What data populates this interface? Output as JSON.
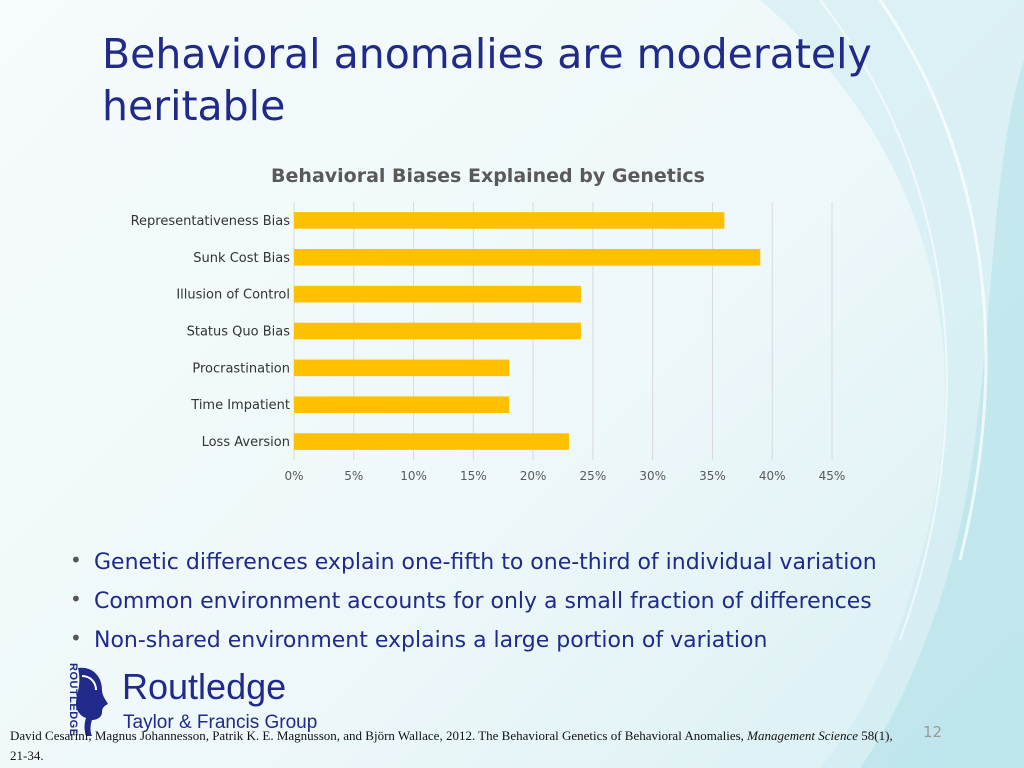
{
  "slide": {
    "title": "Behavioral anomalies are moderately heritable",
    "bullets": [
      "Genetic differences explain one-fifth to one-third of individual variation",
      "Common environment accounts for only a small fraction of differences",
      "Non-shared environment explains a large portion of variation"
    ],
    "logo": {
      "vertical_text": "ROUTLEDGE",
      "name": "Routledge",
      "subtitle": "Taylor & Francis Group"
    },
    "citation": {
      "text": "David Cesarini, Magnus Johannesson, Patrik K. E. Magnusson, and Björn Wallace, 2012. The Behavioral Genetics of Behavioral Anomalies, ",
      "journal": "Management Science",
      "details": " 58(1), 21-34."
    },
    "page_number": "12"
  },
  "colors": {
    "title": "#1f2a8a",
    "bar": "#ffc000",
    "chart_title": "#595959",
    "tick_label": "#595959",
    "gridline": "#d9d9d9"
  },
  "chart_data": {
    "type": "bar",
    "orientation": "horizontal",
    "title": "Behavioral Biases Explained by Genetics",
    "categories": [
      "Representativeness Bias",
      "Sunk Cost Bias",
      "Illusion of Control",
      "Status Quo Bias",
      "Procrastination",
      "Time Impatient",
      "Loss Aversion"
    ],
    "values": [
      0.36,
      0.39,
      0.24,
      0.24,
      0.18,
      0.18,
      0.23
    ],
    "xlim": [
      0,
      0.45
    ],
    "xticks": [
      0,
      0.05,
      0.1,
      0.15,
      0.2,
      0.25,
      0.3,
      0.35,
      0.4,
      0.45
    ],
    "xtick_labels": [
      "0%",
      "5%",
      "10%",
      "15%",
      "20%",
      "25%",
      "30%",
      "35%",
      "40%",
      "45%"
    ],
    "grid": "vertical",
    "legend": "none"
  }
}
